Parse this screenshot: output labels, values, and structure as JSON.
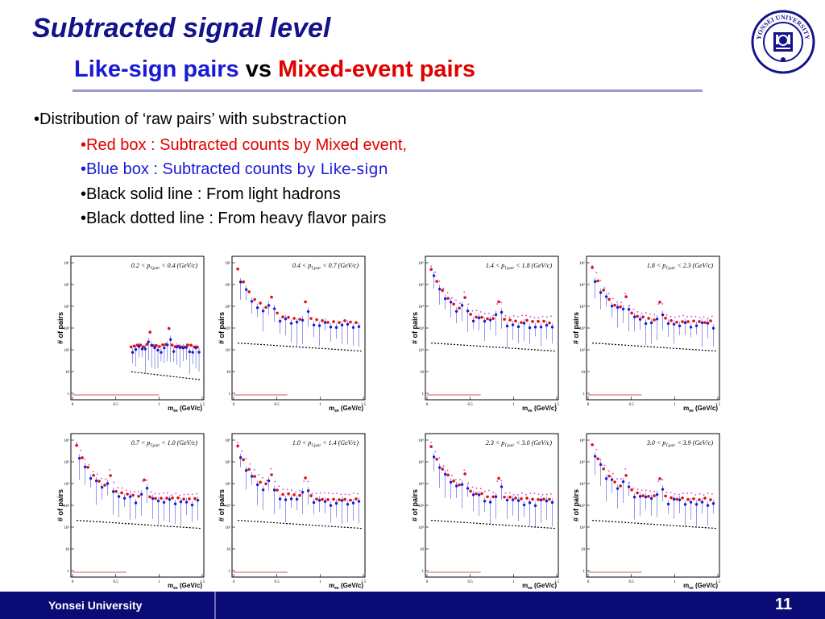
{
  "slide": {
    "title": "Subtracted signal level",
    "subtitle": {
      "part1": "Like-sign pairs",
      "part2": "vs",
      "part3": "Mixed-event pairs"
    },
    "logo_text": "YONSEI UNIVERSITY",
    "bullets": [
      {
        "main": "•Distribution of ‘raw pairs’ with ",
        "thin": "substraction"
      },
      {
        "main": "•Red box : Subtracted counts by Mixed event,"
      },
      {
        "main": "•Blue box : Subtracted counts ",
        "thin": "by Like-sign"
      },
      {
        "main": "•Black solid line : From light hadrons"
      },
      {
        "main": "•Black dotted line : From heavy flavor pairs"
      }
    ],
    "colors": {
      "title": "#13138c",
      "blue": "#1a1ad6",
      "red": "#e00000",
      "footer": "#0b0b75"
    },
    "footer": {
      "institution": "Yonsei University",
      "page": "11"
    }
  },
  "plots": [
    {
      "label": "0.2 < p_T,pair < 0.4 (GeV/c)",
      "label_main": "0.2 < p",
      "label_sub": "T,pair",
      "label_end": "< 0.4 (GeV/c)"
    },
    {
      "label": "0.4 < p_T,pair < 0.7 (GeV/c)",
      "label_main": "0.4 < p",
      "label_sub": "T,pair",
      "label_end": "< 0.7 (GeV/c)"
    },
    {
      "label": "1.4 < p_T,pair < 1.8 (GeV/c)",
      "label_main": "1.4 < p",
      "label_sub": "T,pair",
      "label_end": "< 1.8 (GeV/c)"
    },
    {
      "label": "1.8 < p_T,pair < 2.3 (GeV/c)",
      "label_main": "1.8 < p",
      "label_sub": "T,pair",
      "label_end": "< 2.3 (GeV/c)"
    },
    {
      "label": "0.7 < p_T,pair < 1.0 (GeV/c)",
      "label_main": "0.7 < p",
      "label_sub": "T,pair",
      "label_end": "< 1.0 (GeV/c)"
    },
    {
      "label": "1.0 < p_T,pair < 1.4 (GeV/c)",
      "label_main": "1.0 < p",
      "label_sub": "T,pair",
      "label_end": "< 1.4 (GeV/c)"
    },
    {
      "label": "2.3 < p_T,pair < 3.0 (GeV/c)",
      "label_main": "2.3 < p",
      "label_sub": "T,pair",
      "label_end": "< 3.0 (GeV/c)"
    },
    {
      "label": "3.0 < p_T,pair < 3.9 (GeV/c)",
      "label_main": "3.0 < p",
      "label_sub": "T,pair",
      "label_end": "< 3.9 (GeV/c)"
    }
  ],
  "plot_axes": {
    "ylabel": "# of pairs",
    "xlabel_main": "m",
    "xlabel_sub": "ee",
    "xlabel_end": " (GeV/c)",
    "xticks": [
      "0",
      "0.5",
      "1",
      "1.5"
    ],
    "yticks": [
      "1",
      "10",
      "10²",
      "10³",
      "10⁴",
      "10⁵",
      "10⁶"
    ]
  }
}
